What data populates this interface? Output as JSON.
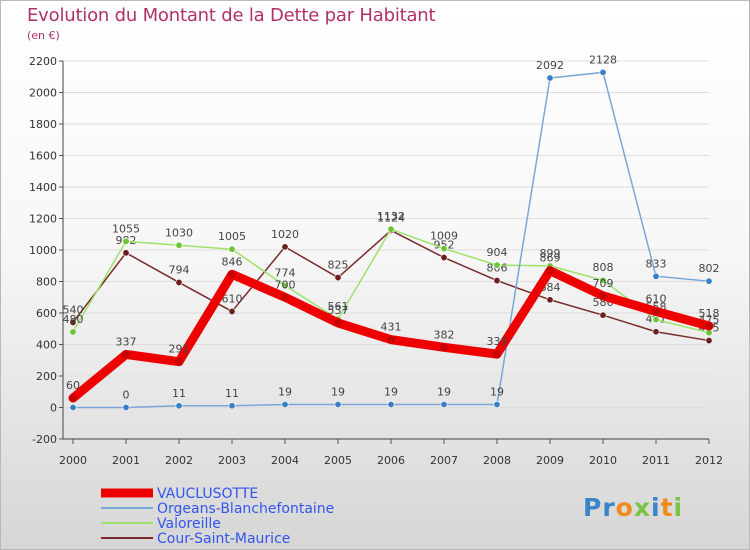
{
  "title": "Evolution du Montant de la Dette par Habitant",
  "unit": "(en €)",
  "logo": {
    "text": "Proxiti",
    "letter_colors": [
      "#3a84c8",
      "#3a84c8",
      "#f08a1c",
      "#7cc243",
      "#3a84c8",
      "#f08a1c",
      "#7cc243"
    ]
  },
  "chart_data": {
    "type": "line",
    "categories": [
      "2000",
      "2001",
      "2002",
      "2003",
      "2004",
      "2005",
      "2006",
      "2007",
      "2008",
      "2009",
      "2010",
      "2011",
      "2012"
    ],
    "ylim": [
      -200,
      2200
    ],
    "yticks": [
      -200,
      0,
      200,
      400,
      600,
      800,
      1000,
      1200,
      1400,
      1600,
      1800,
      2000,
      2200
    ],
    "grid": true,
    "legend_position": "bottom-left",
    "series": [
      {
        "name": "Cour-Saint-Maurice",
        "color": "#7a2a2a",
        "marker": "#6b2020",
        "values": [
          540,
          982,
          794,
          610,
          1020,
          825,
          1124,
          952,
          806,
          684,
          586,
          481,
          425
        ],
        "labels": [
          "540",
          "982",
          "794",
          "610",
          "1020",
          "825",
          "1124",
          "952",
          "806",
          "684",
          "586",
          "481",
          "425"
        ]
      },
      {
        "name": "Valoreille",
        "color": "#9ee26a",
        "marker": "#6cc434",
        "values": [
          480,
          1055,
          1030,
          1005,
          774,
          561,
          1132,
          1009,
          904,
          899,
          808,
          558,
          475
        ],
        "labels": [
          "480",
          "1055",
          "1030",
          "1005",
          "774",
          "561",
          "1132",
          "1009",
          "904",
          "899",
          "808",
          "558",
          "475"
        ]
      },
      {
        "name": "Orgeans-Blanchefontaine",
        "color": "#7aa6d8",
        "marker": "#3a7fc6",
        "values": [
          0,
          0,
          11,
          11,
          19,
          19,
          19,
          19,
          19,
          2092,
          2128,
          833,
          802
        ],
        "labels": [
          "",
          "0",
          "11",
          "11",
          "19",
          "19",
          "19",
          "19",
          "19",
          "2092",
          "2128",
          "833",
          "802"
        ]
      },
      {
        "name": "VAUCLUSOTTE",
        "color": "#ee0000",
        "marker": "#c80000",
        "values": [
          60,
          337,
          291,
          846,
          700,
          537,
          431,
          382,
          339,
          869,
          709,
          610,
          518
        ],
        "labels": [
          "60",
          "337",
          "291",
          "846",
          "700",
          "537",
          "431",
          "382",
          "339",
          "869",
          "709",
          "610",
          "518"
        ]
      }
    ]
  },
  "legend": [
    {
      "label": "VAUCLUSOTTE",
      "color": "#ee0000",
      "width": 9
    },
    {
      "label": "Orgeans-Blanchefontaine",
      "color": "#7aa6d8",
      "width": 2
    },
    {
      "label": "Valoreille",
      "color": "#9ee26a",
      "width": 2
    },
    {
      "label": "Cour-Saint-Maurice",
      "color": "#7a2a2a",
      "width": 2
    }
  ],
  "legend_text_color": "#3355ee"
}
